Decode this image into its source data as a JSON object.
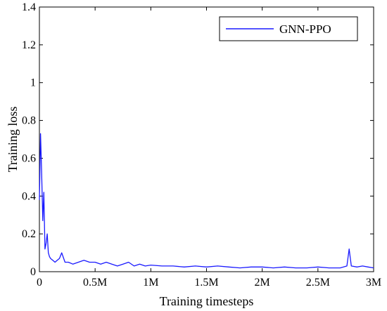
{
  "chart_data": {
    "type": "line",
    "title": "",
    "xlabel": "Training timesteps",
    "ylabel": "Training loss",
    "xlim": [
      0,
      3000000
    ],
    "ylim": [
      0,
      1.4
    ],
    "x_ticks": [
      {
        "value": 0,
        "label": "0"
      },
      {
        "value": 500000,
        "label": "0.5M"
      },
      {
        "value": 1000000,
        "label": "1M"
      },
      {
        "value": 1500000,
        "label": "1.5M"
      },
      {
        "value": 2000000,
        "label": "2M"
      },
      {
        "value": 2500000,
        "label": "2.5M"
      },
      {
        "value": 3000000,
        "label": "3M"
      }
    ],
    "y_ticks": [
      {
        "value": 0,
        "label": "0"
      },
      {
        "value": 0.2,
        "label": "0.2"
      },
      {
        "value": 0.4,
        "label": "0.4"
      },
      {
        "value": 0.6,
        "label": "0.6"
      },
      {
        "value": 0.8,
        "label": "0.8"
      },
      {
        "value": 1.0,
        "label": "1"
      },
      {
        "value": 1.2,
        "label": "1.2"
      },
      {
        "value": 1.4,
        "label": "1.4"
      }
    ],
    "grid": false,
    "legend": {
      "position": "top-right"
    },
    "series": [
      {
        "name": "GNN-PPO",
        "color": "#1a1aff",
        "x": [
          0,
          10000,
          20000,
          30000,
          40000,
          50000,
          60000,
          70000,
          80000,
          90000,
          100000,
          120000,
          140000,
          160000,
          180000,
          200000,
          230000,
          260000,
          300000,
          350000,
          400000,
          450000,
          500000,
          550000,
          600000,
          650000,
          700000,
          750000,
          800000,
          850000,
          900000,
          950000,
          1000000,
          1100000,
          1200000,
          1300000,
          1400000,
          1500000,
          1600000,
          1700000,
          1800000,
          1900000,
          2000000,
          2100000,
          2200000,
          2300000,
          2400000,
          2500000,
          2600000,
          2700000,
          2760000,
          2780000,
          2800000,
          2850000,
          2900000,
          2950000,
          3000000
        ],
        "values": [
          0.38,
          0.73,
          0.52,
          0.27,
          0.42,
          0.12,
          0.15,
          0.2,
          0.1,
          0.08,
          0.07,
          0.06,
          0.05,
          0.06,
          0.07,
          0.1,
          0.05,
          0.05,
          0.04,
          0.05,
          0.06,
          0.05,
          0.05,
          0.04,
          0.05,
          0.04,
          0.03,
          0.04,
          0.05,
          0.03,
          0.04,
          0.03,
          0.035,
          0.03,
          0.03,
          0.025,
          0.03,
          0.025,
          0.03,
          0.025,
          0.02,
          0.025,
          0.025,
          0.02,
          0.025,
          0.02,
          0.02,
          0.025,
          0.02,
          0.02,
          0.03,
          0.12,
          0.03,
          0.025,
          0.03,
          0.025,
          0.02
        ]
      }
    ]
  }
}
